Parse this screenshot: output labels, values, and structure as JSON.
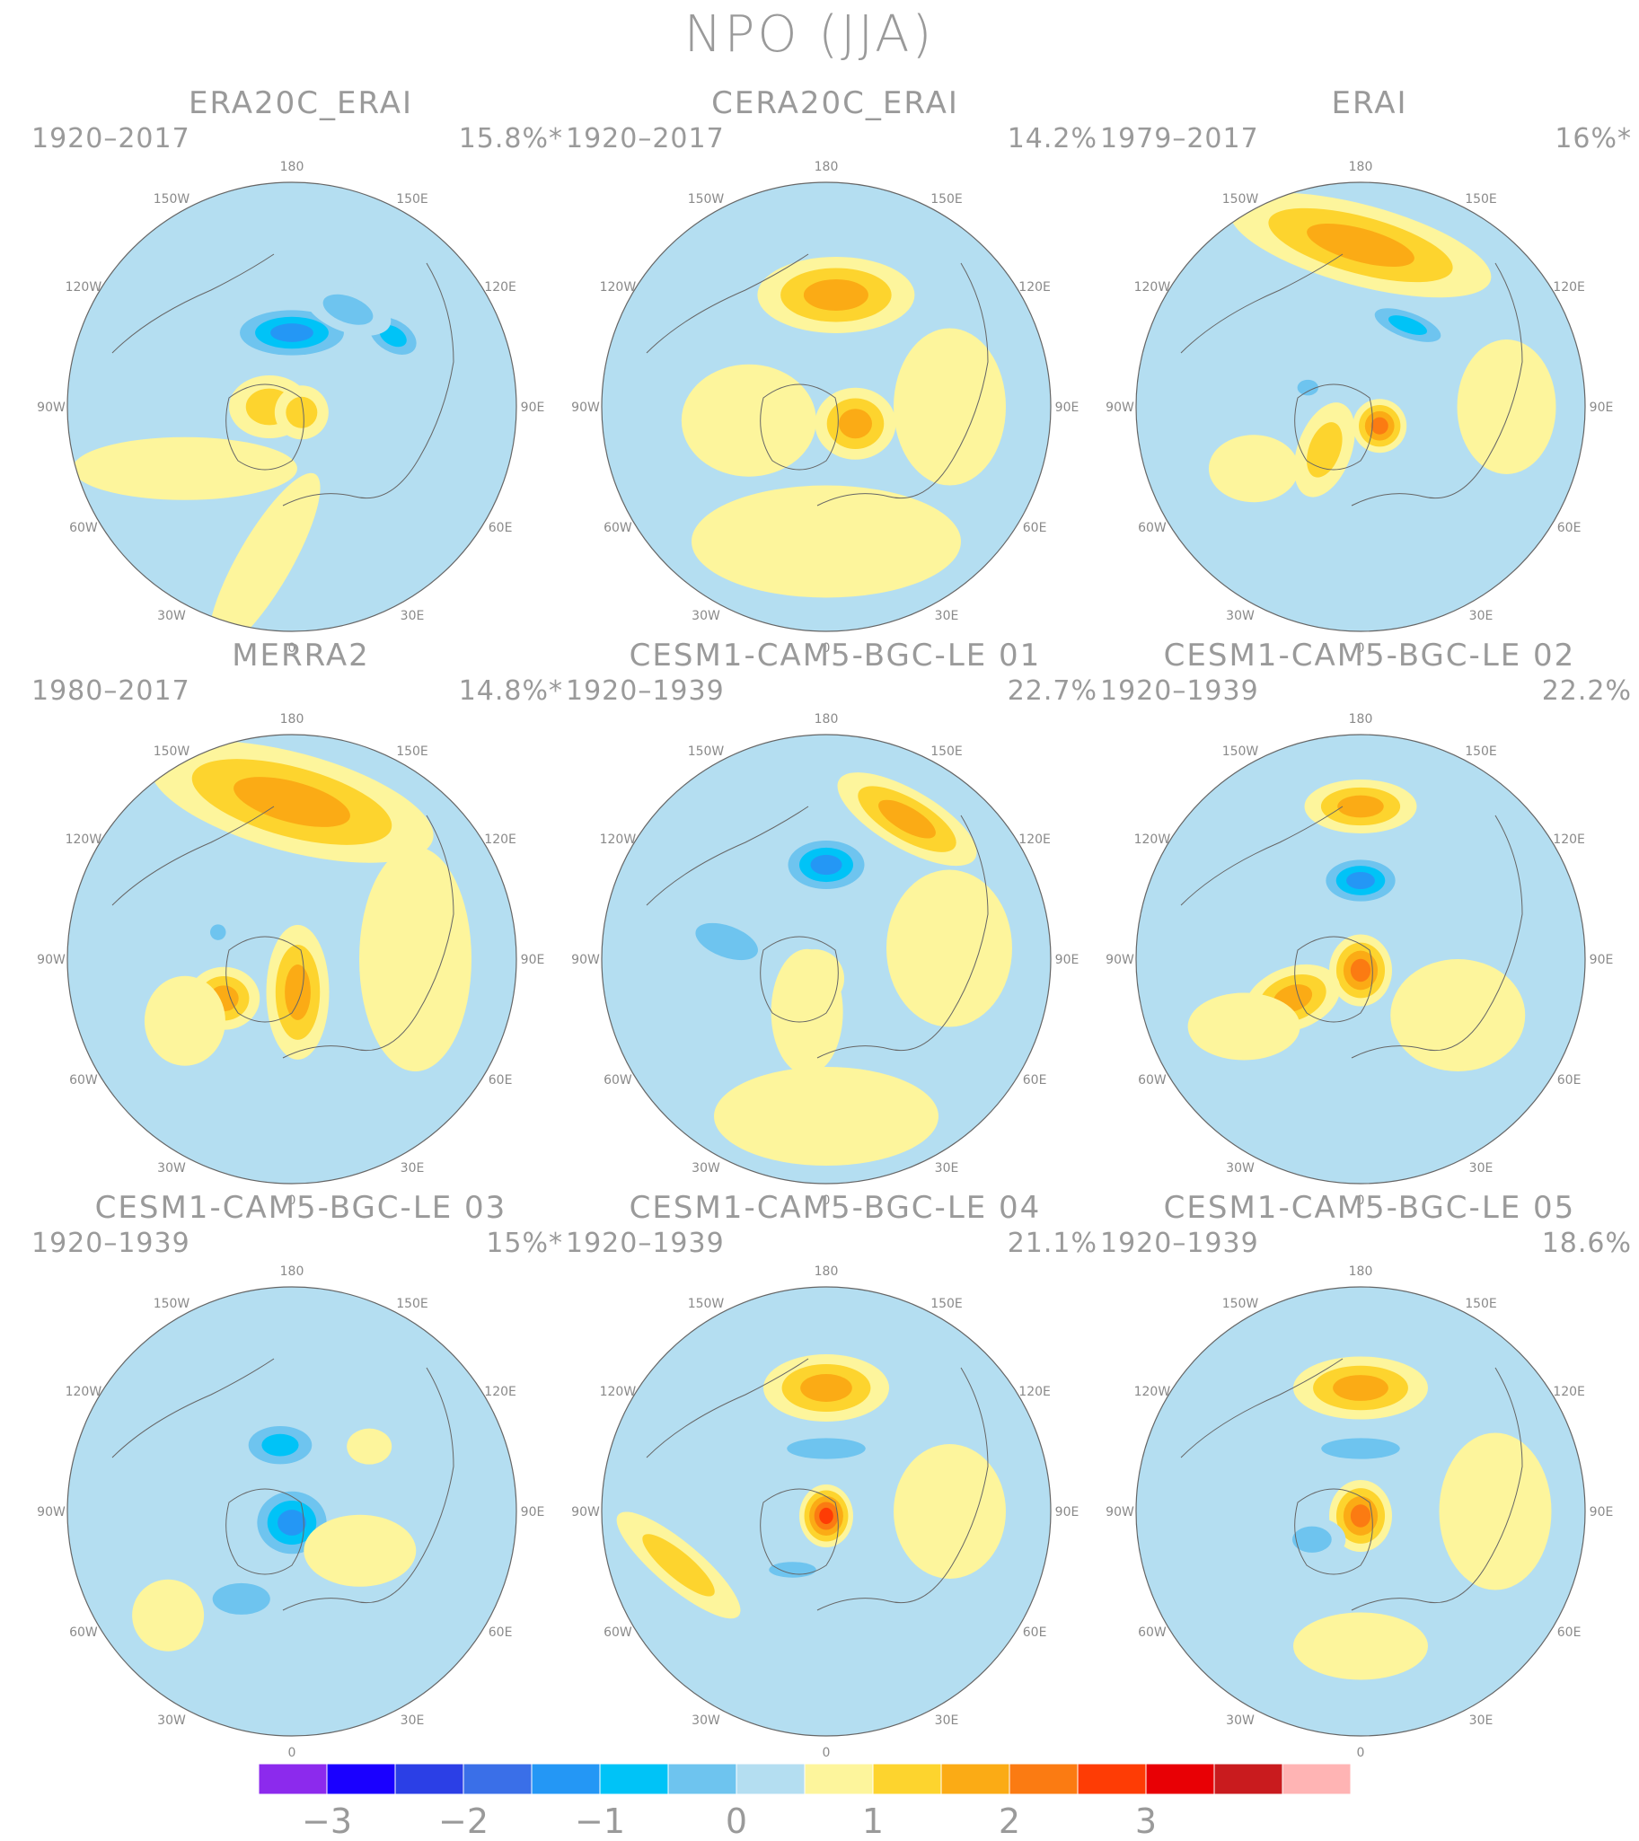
{
  "title": "NPO (JJA)",
  "panels": [
    {
      "name": "ERA20C_ERAI",
      "period": "1920–2017",
      "variance": "15.8%*",
      "blobs": [
        {
          "lon": 180,
          "r": 0.33,
          "rx": 0.3,
          "ry": 0.13,
          "rot": 0,
          "v": -1.6
        },
        {
          "lon": 125,
          "r": 0.55,
          "rx": 0.16,
          "ry": 0.1,
          "rot": 30,
          "v": -1.2
        },
        {
          "lon": 150,
          "r": 0.5,
          "rx": 0.2,
          "ry": 0.1,
          "rot": 20,
          "v": -0.8
        },
        {
          "lon": 270,
          "r": 0.1,
          "rx": 0.18,
          "ry": 0.14,
          "rot": 0,
          "v": 0.9
        },
        {
          "lon": 60,
          "r": 0.05,
          "rx": 0.12,
          "ry": 0.12,
          "rot": 0,
          "v": 0.6
        },
        {
          "lon": 300,
          "r": 0.55,
          "rx": 0.5,
          "ry": 0.14,
          "rot": 0,
          "v": 0.4
        },
        {
          "lon": 350,
          "r": 0.7,
          "rx": 0.45,
          "ry": 0.12,
          "rot": -60,
          "v": 0.4
        }
      ]
    },
    {
      "name": "CERA20C_ERAI",
      "period": "1920–2017",
      "variance": "14.2%",
      "blobs": [
        {
          "lon": 175,
          "r": 0.5,
          "rx": 0.35,
          "ry": 0.17,
          "rot": 0,
          "v": 1.4
        },
        {
          "lon": 60,
          "r": 0.15,
          "rx": 0.18,
          "ry": 0.16,
          "rot": 0,
          "v": 1.3
        },
        {
          "lon": 0,
          "r": 0.6,
          "rx": 0.6,
          "ry": 0.25,
          "rot": 0,
          "v": 0.5
        },
        {
          "lon": 90,
          "r": 0.55,
          "rx": 0.25,
          "ry": 0.35,
          "rot": 0,
          "v": 0.4
        },
        {
          "lon": 280,
          "r": 0.35,
          "rx": 0.3,
          "ry": 0.25,
          "rot": 0,
          "v": 0.45
        }
      ]
    },
    {
      "name": "ERAI",
      "period": "1979–2017",
      "variance": "16%*",
      "blobs": [
        {
          "lon": 180,
          "r": 0.72,
          "rx": 0.6,
          "ry": 0.18,
          "rot": 15,
          "v": 1.1
        },
        {
          "lon": 150,
          "r": 0.42,
          "rx": 0.22,
          "ry": 0.08,
          "rot": 20,
          "v": -1.1
        },
        {
          "lon": 45,
          "r": 0.12,
          "rx": 0.12,
          "ry": 0.12,
          "rot": 0,
          "v": 1.6
        },
        {
          "lon": 320,
          "r": 0.25,
          "rx": 0.12,
          "ry": 0.22,
          "rot": 20,
          "v": 0.8
        },
        {
          "lon": 300,
          "r": 0.55,
          "rx": 0.2,
          "ry": 0.15,
          "rot": 0,
          "v": 0.45
        },
        {
          "lon": 90,
          "r": 0.65,
          "rx": 0.22,
          "ry": 0.3,
          "rot": 0,
          "v": 0.45
        },
        {
          "lon": 250,
          "r": 0.25,
          "rx": 0.08,
          "ry": 0.06,
          "rot": 0,
          "v": -0.8
        }
      ]
    },
    {
      "name": "MERRA2",
      "period": "1980–2017",
      "variance": "14.8%*",
      "blobs": [
        {
          "lon": 180,
          "r": 0.7,
          "rx": 0.65,
          "ry": 0.22,
          "rot": 15,
          "v": 1.1
        },
        {
          "lon": 10,
          "r": 0.15,
          "rx": 0.14,
          "ry": 0.3,
          "rot": 0,
          "v": 1.5
        },
        {
          "lon": 300,
          "r": 0.35,
          "rx": 0.16,
          "ry": 0.14,
          "rot": 0,
          "v": 1.1
        },
        {
          "lon": 90,
          "r": 0.55,
          "rx": 0.25,
          "ry": 0.5,
          "rot": 0,
          "v": 0.45
        },
        {
          "lon": 300,
          "r": 0.55,
          "rx": 0.18,
          "ry": 0.2,
          "rot": 0,
          "v": 0.4
        },
        {
          "lon": 250,
          "r": 0.35,
          "rx": 0.06,
          "ry": 0.06,
          "rot": 0,
          "v": -0.8
        }
      ]
    },
    {
      "name": "CESM1-CAM5-BGC-LE 01",
      "period": "1920–1939",
      "variance": "22.7%",
      "blobs": [
        {
          "lon": 180,
          "r": 0.42,
          "rx": 0.22,
          "ry": 0.14,
          "rot": 0,
          "v": -2.0
        },
        {
          "lon": 150,
          "r": 0.72,
          "rx": 0.35,
          "ry": 0.13,
          "rot": 30,
          "v": 1.1
        },
        {
          "lon": 330,
          "r": 0.1,
          "rx": 0.13,
          "ry": 0.13,
          "rot": 0,
          "v": 0.9
        },
        {
          "lon": 340,
          "r": 0.25,
          "rx": 0.16,
          "ry": 0.28,
          "rot": 0,
          "v": 0.45
        },
        {
          "lon": 95,
          "r": 0.55,
          "rx": 0.28,
          "ry": 0.35,
          "rot": 0,
          "v": 0.45
        },
        {
          "lon": 0,
          "r": 0.7,
          "rx": 0.5,
          "ry": 0.22,
          "rot": 0,
          "v": 0.5
        },
        {
          "lon": 260,
          "r": 0.45,
          "rx": 0.25,
          "ry": 0.12,
          "rot": 20,
          "v": -0.8
        }
      ]
    },
    {
      "name": "CESM1-CAM5-BGC-LE 02",
      "period": "1920–1939",
      "variance": "22.2%",
      "blobs": [
        {
          "lon": 180,
          "r": 0.35,
          "rx": 0.2,
          "ry": 0.12,
          "rot": 0,
          "v": -1.9
        },
        {
          "lon": 180,
          "r": 0.68,
          "rx": 0.25,
          "ry": 0.12,
          "rot": 0,
          "v": 1.1
        },
        {
          "lon": 0,
          "r": 0.05,
          "rx": 0.14,
          "ry": 0.16,
          "rot": 0,
          "v": 2.0
        },
        {
          "lon": 300,
          "r": 0.35,
          "rx": 0.22,
          "ry": 0.14,
          "rot": -20,
          "v": 1.2
        },
        {
          "lon": 60,
          "r": 0.5,
          "rx": 0.3,
          "ry": 0.25,
          "rot": 0,
          "v": 0.45
        },
        {
          "lon": 300,
          "r": 0.6,
          "rx": 0.25,
          "ry": 0.15,
          "rot": 0,
          "v": 0.45
        }
      ]
    },
    {
      "name": "CESM1-CAM5-BGC-LE 03",
      "period": "1920–1939",
      "variance": "15%*",
      "blobs": [
        {
          "lon": 0,
          "r": 0.05,
          "rx": 0.2,
          "ry": 0.18,
          "rot": 0,
          "v": -2.0
        },
        {
          "lon": 190,
          "r": 0.3,
          "rx": 0.2,
          "ry": 0.12,
          "rot": 0,
          "v": -1.2
        },
        {
          "lon": 330,
          "r": 0.45,
          "rx": 0.22,
          "ry": 0.12,
          "rot": 0,
          "v": -0.9
        },
        {
          "lon": 310,
          "r": 0.72,
          "rx": 0.16,
          "ry": 0.16,
          "rot": 0,
          "v": 0.45
        },
        {
          "lon": 60,
          "r": 0.35,
          "rx": 0.25,
          "ry": 0.16,
          "rot": 0,
          "v": 0.45
        },
        {
          "lon": 130,
          "r": 0.45,
          "rx": 0.1,
          "ry": 0.08,
          "rot": 0,
          "v": 0.4
        }
      ]
    },
    {
      "name": "CESM1-CAM5-BGC-LE 04",
      "period": "1920–1939",
      "variance": "21.1%",
      "blobs": [
        {
          "lon": 180,
          "r": 0.55,
          "rx": 0.28,
          "ry": 0.15,
          "rot": 0,
          "v": 1.5
        },
        {
          "lon": 0,
          "r": 0.02,
          "rx": 0.12,
          "ry": 0.14,
          "rot": 0,
          "v": 2.1
        },
        {
          "lon": 180,
          "r": 0.28,
          "rx": 0.3,
          "ry": 0.08,
          "rot": 0,
          "v": -0.9
        },
        {
          "lon": 330,
          "r": 0.3,
          "rx": 0.18,
          "ry": 0.06,
          "rot": 0,
          "v": -0.9
        },
        {
          "lon": 290,
          "r": 0.7,
          "rx": 0.35,
          "ry": 0.1,
          "rot": 40,
          "v": 0.9
        },
        {
          "lon": 90,
          "r": 0.55,
          "rx": 0.25,
          "ry": 0.3,
          "rot": 0,
          "v": 0.45
        }
      ]
    },
    {
      "name": "CESM1-CAM5-BGC-LE 05",
      "period": "1920–1939",
      "variance": "18.6%",
      "blobs": [
        {
          "lon": 180,
          "r": 0.55,
          "rx": 0.3,
          "ry": 0.14,
          "rot": 0,
          "v": 1.4
        },
        {
          "lon": 0,
          "r": 0.02,
          "rx": 0.14,
          "ry": 0.16,
          "rot": 0,
          "v": 2.0
        },
        {
          "lon": 180,
          "r": 0.28,
          "rx": 0.3,
          "ry": 0.08,
          "rot": 0,
          "v": -0.8
        },
        {
          "lon": 300,
          "r": 0.25,
          "rx": 0.15,
          "ry": 0.1,
          "rot": 0,
          "v": -0.9
        },
        {
          "lon": 90,
          "r": 0.6,
          "rx": 0.25,
          "ry": 0.35,
          "rot": 0,
          "v": 0.45
        },
        {
          "lon": 0,
          "r": 0.6,
          "rx": 0.3,
          "ry": 0.15,
          "rot": 0,
          "v": 0.4
        }
      ]
    }
  ],
  "lon_labels": [
    "180",
    "150E",
    "120E",
    "90E",
    "60E",
    "30E",
    "0",
    "30W",
    "60W",
    "90W",
    "120W",
    "150W"
  ],
  "colorbar": {
    "colors": [
      "#8c2aed",
      "#1a00ff",
      "#2b3fe6",
      "#3a6fe8",
      "#2497f5",
      "#00c3f7",
      "#6ec4ef",
      "#b4def1",
      "#fdf59c",
      "#fdd42e",
      "#fbab15",
      "#fb7b12",
      "#fe3c05",
      "#e80005",
      "#c91b1e",
      "#ffb4b4"
    ],
    "labels": [
      "−3",
      "−2",
      "−1",
      "0",
      "1",
      "2",
      "3"
    ],
    "levels": [
      -3.5,
      -3,
      -2.5,
      -2,
      -1.5,
      -1,
      -0.5,
      0,
      0.5,
      1,
      1.5,
      2,
      2.5,
      3,
      3.5
    ]
  }
}
